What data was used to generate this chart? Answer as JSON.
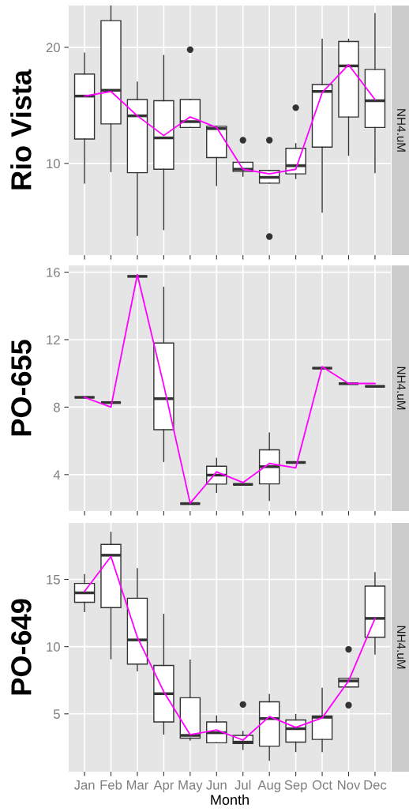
{
  "chart_data": [
    {
      "type": "box",
      "ylabel": "Rio Vista",
      "annotations": [
        "NH4.uM"
      ],
      "categories": [
        null,
        null,
        null,
        null,
        null,
        null,
        null,
        null,
        null,
        null,
        null,
        null
      ],
      "ylim": [
        2.1,
        23.6
      ],
      "yticks": [
        10,
        20
      ],
      "grid": true,
      "tick_labels": "y",
      "series": [
        {
          "type": "box",
          "color": "#333333",
          "boxes": [
            {
              "low": 8.3,
              "q1": 12.1,
              "median": 15.8,
              "q3": 17.7,
              "high": 19.5
            },
            {
              "low": 9.3,
              "q1": 13.4,
              "median": 16.3,
              "q3": 22.3,
              "high": 23.6
            },
            {
              "low": 3.8,
              "q1": 9.2,
              "median": 14.1,
              "q3": 15.5,
              "high": 17.0
            },
            {
              "low": 4.3,
              "q1": 9.5,
              "median": 12.2,
              "q3": 15.4,
              "high": 19.3
            },
            {
              "low": 13.1,
              "q1": 13.1,
              "median": 13.6,
              "q3": 15.5,
              "high": 15.5,
              "outliers": [
                19.8
              ]
            },
            {
              "low": 8.1,
              "q1": 10.5,
              "median": 13.0,
              "q3": 13.2,
              "high": 13.2
            },
            {
              "low": 8.9,
              "q1": 9.3,
              "median": 9.5,
              "q3": 10.1,
              "high": 10.1,
              "outliers": [
                12.0
              ]
            },
            {
              "low": 8.3,
              "q1": 8.3,
              "median": 8.8,
              "q3": 9.4,
              "high": 9.4,
              "outliers": [
                12.0,
                3.7
              ]
            },
            {
              "low": 8.7,
              "q1": 9.1,
              "median": 9.8,
              "q3": 11.3,
              "high": 11.7,
              "outliers": [
                14.8
              ]
            },
            {
              "low": 5.8,
              "q1": 11.4,
              "median": 16.2,
              "q3": 16.8,
              "high": 20.7
            },
            {
              "low": 10.7,
              "q1": 14.0,
              "median": 18.4,
              "q3": 20.5,
              "high": 20.7
            },
            {
              "low": 9.2,
              "q1": 13.1,
              "median": 15.4,
              "q3": 18.1,
              "high": 22.9
            }
          ]
        },
        {
          "type": "line",
          "color": "#ff00ff",
          "values": [
            15.8,
            16.2,
            14.1,
            12.4,
            14.0,
            13.1,
            9.5,
            9.1,
            9.5,
            16.1,
            18.5,
            15.5
          ]
        }
      ]
    },
    {
      "type": "box",
      "ylabel": "PO-655",
      "annotations": [
        "NH4.uM"
      ],
      "categories": [
        null,
        null,
        null,
        null,
        null,
        null,
        null,
        null,
        null,
        null,
        null,
        null
      ],
      "ylim": [
        1.84,
        16.4
      ],
      "yticks": [
        4,
        8,
        12,
        16
      ],
      "grid": true,
      "tick_labels": "y",
      "series": [
        {
          "type": "box",
          "color": "#333333",
          "boxes": [
            {
              "low": 8.58,
              "q1": 8.58,
              "median": 8.58,
              "q3": 8.58,
              "high": 8.58
            },
            {
              "low": 8.27,
              "q1": 8.27,
              "median": 8.27,
              "q3": 8.27,
              "high": 8.27
            },
            {
              "low": 15.75,
              "q1": 15.75,
              "median": 15.75,
              "q3": 15.75,
              "high": 15.75
            },
            {
              "low": 4.78,
              "q1": 6.66,
              "median": 8.5,
              "q3": 11.8,
              "high": 15.1
            },
            {
              "low": 2.28,
              "q1": 2.28,
              "median": 2.28,
              "q3": 2.28,
              "high": 2.28
            },
            {
              "low": 2.95,
              "q1": 3.44,
              "median": 3.97,
              "q3": 4.5,
              "high": 4.97
            },
            {
              "low": 3.42,
              "q1": 3.42,
              "median": 3.42,
              "q3": 3.42,
              "high": 3.42
            },
            {
              "low": 2.47,
              "q1": 3.45,
              "median": 4.47,
              "q3": 5.47,
              "high": 6.47
            },
            {
              "low": 4.72,
              "q1": 4.72,
              "median": 4.72,
              "q3": 4.72,
              "high": 4.72
            },
            {
              "low": 10.31,
              "q1": 10.31,
              "median": 10.31,
              "q3": 10.31,
              "high": 10.31
            },
            {
              "low": 9.39,
              "q1": 9.39,
              "median": 9.39,
              "q3": 9.39,
              "high": 9.39
            },
            {
              "low": 9.23,
              "q1": 9.23,
              "median": 9.23,
              "q3": 9.23,
              "high": 9.23
            }
          ]
        },
        {
          "type": "line",
          "color": "#ff00ff",
          "values": [
            8.58,
            8.0,
            15.85,
            9.3,
            2.3,
            4.16,
            3.53,
            4.66,
            4.4,
            10.4,
            9.4,
            9.4
          ]
        }
      ]
    },
    {
      "type": "box",
      "ylabel": "PO-649",
      "xlabel": "Month",
      "annotations": [
        "NH4.uM"
      ],
      "categories": [
        "Jan",
        "Feb",
        "Mar",
        "Apr",
        "May",
        "Jun",
        "Jul",
        "Aug",
        "Sep",
        "Oct",
        "Nov",
        "Dec"
      ],
      "ylim": [
        0.7,
        19.2
      ],
      "yticks": [
        5,
        10,
        15
      ],
      "grid": true,
      "series": [
        {
          "type": "box",
          "color": "#333333",
          "boxes": [
            {
              "low": 12.6,
              "q1": 13.3,
              "median": 14.0,
              "q3": 14.7,
              "high": 15.35
            },
            {
              "low": 9.1,
              "q1": 12.9,
              "median": 16.8,
              "q3": 17.6,
              "high": 18.5
            },
            {
              "low": 8.2,
              "q1": 8.7,
              "median": 10.5,
              "q3": 13.6,
              "high": 15.8
            },
            {
              "low": 3.5,
              "q1": 4.4,
              "median": 6.5,
              "q3": 8.6,
              "high": 12.4
            },
            {
              "low": 3.05,
              "q1": 3.2,
              "median": 3.4,
              "q3": 6.2,
              "high": 9.0
            },
            {
              "low": 2.85,
              "q1": 2.85,
              "median": 3.6,
              "q3": 4.4,
              "high": 4.85
            },
            {
              "low": 2.35,
              "q1": 2.8,
              "median": 2.9,
              "q3": 3.4,
              "high": 3.7,
              "outliers": [
                5.7
              ]
            },
            {
              "low": 1.55,
              "q1": 2.6,
              "median": 4.65,
              "q3": 5.9,
              "high": 6.45
            },
            {
              "low": 2.2,
              "q1": 2.9,
              "median": 3.9,
              "q3": 4.55,
              "high": 4.95
            },
            {
              "low": 2.2,
              "q1": 3.1,
              "median": 4.75,
              "q3": 4.85,
              "high": 6.9
            },
            {
              "low": 7.0,
              "q1": 7.0,
              "median": 7.45,
              "q3": 7.65,
              "high": 7.65,
              "outliers": [
                9.8,
                5.65
              ]
            },
            {
              "low": 9.45,
              "q1": 10.7,
              "median": 12.1,
              "q3": 14.5,
              "high": 15.5
            }
          ]
        },
        {
          "type": "line",
          "color": "#ff00ff",
          "values": [
            14.1,
            16.7,
            10.7,
            6.65,
            3.45,
            3.8,
            3.05,
            4.8,
            4.0,
            4.7,
            7.45,
            12.1
          ]
        }
      ]
    }
  ]
}
